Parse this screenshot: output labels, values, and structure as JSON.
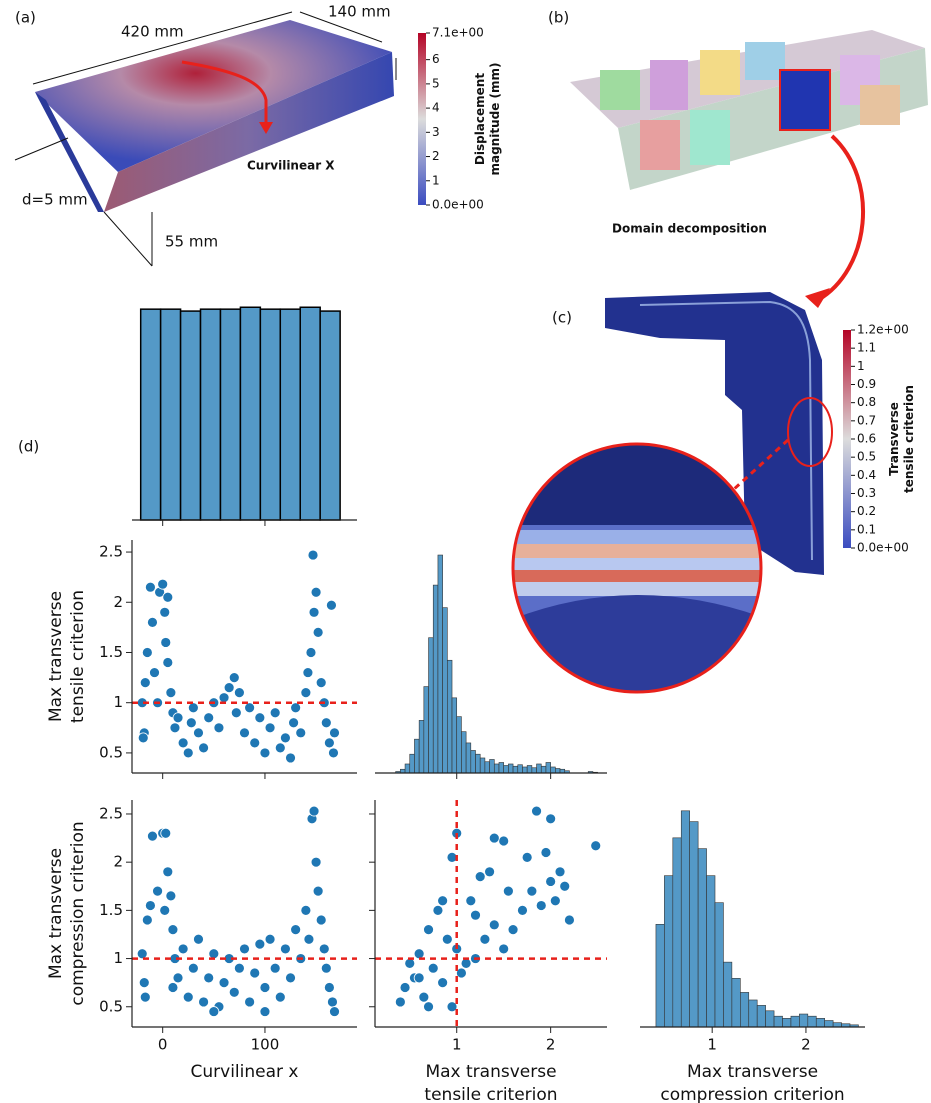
{
  "annotations": {
    "panel_a": "(a)",
    "panel_b": "(b)",
    "panel_c": "(c)",
    "panel_d": "(d)",
    "length": "420 mm",
    "width": "140 mm",
    "thickness": "d=5 mm",
    "height": "55 mm",
    "curvilinear": "Curvilinear X",
    "decomposition": "Domain decomposition"
  },
  "colorbars": [
    {
      "label": [
        "Displacement",
        "magnitude (mm)"
      ],
      "clim": [
        0,
        7.1
      ],
      "colors": [
        "#3b4cc0",
        "#dcdcdc",
        "#b40426"
      ],
      "ticks": [
        {
          "value": 7.1,
          "label": "7.1e+00"
        },
        6,
        5,
        4,
        3,
        2,
        1,
        {
          "value": 0,
          "label": "0.0e+00"
        }
      ]
    },
    {
      "label": [
        "Transverse",
        "tensile criterion"
      ],
      "clim": [
        0,
        1.2
      ],
      "colors": [
        "#3b4cc0",
        "#dcdcdc",
        "#b40426"
      ],
      "ticks": [
        {
          "value": 1.2,
          "label": "1.2e+00"
        },
        1.1,
        1,
        0.9,
        0.8,
        0.7,
        0.6,
        0.5,
        0.4,
        0.3,
        0.2,
        0.1,
        {
          "value": 0,
          "label": "0.0e+00"
        }
      ]
    }
  ],
  "chart_data": [
    {
      "type": "histogram",
      "color": "#5499c7",
      "edge": "#000000",
      "bins": [
        -21.5,
        -2,
        17.5,
        37,
        56.5,
        76,
        95.5,
        115,
        134.5,
        154,
        173.5
      ],
      "values": [
        110,
        110,
        109,
        110,
        110,
        111,
        110,
        110,
        111,
        109
      ],
      "xlim": [
        -30,
        190
      ],
      "ylim": [
        0,
        120
      ],
      "xticks": [
        0,
        100
      ],
      "xtick_labels": false
    },
    {
      "type": "scatter",
      "color": "#1f77b4",
      "ylabel": [
        "Max transverse",
        "tensile criterion"
      ],
      "x": [
        -18,
        -15,
        -17,
        -12,
        -10,
        -8,
        -5,
        -3,
        0,
        2,
        3,
        5,
        5,
        8,
        -20,
        -19,
        10,
        12,
        15,
        20,
        25,
        28,
        30,
        35,
        40,
        45,
        50,
        55,
        60,
        65,
        70,
        72,
        75,
        80,
        85,
        90,
        95,
        100,
        105,
        110,
        115,
        120,
        125,
        128,
        130,
        135,
        140,
        142,
        145,
        147,
        148,
        150,
        152,
        155,
        158,
        160,
        163,
        165,
        167,
        168
      ],
      "values": [
        0.7,
        1.5,
        1.2,
        2.15,
        1.8,
        1.3,
        1.0,
        2.1,
        2.18,
        1.9,
        1.6,
        1.4,
        2.05,
        1.1,
        1.0,
        0.65,
        0.9,
        0.75,
        0.85,
        0.6,
        0.5,
        0.8,
        0.95,
        0.7,
        0.55,
        0.85,
        1.0,
        0.75,
        1.05,
        1.15,
        1.25,
        0.9,
        1.1,
        0.7,
        0.95,
        0.6,
        0.85,
        0.5,
        0.75,
        0.9,
        0.55,
        0.65,
        0.45,
        0.8,
        0.95,
        0.7,
        1.1,
        1.3,
        1.5,
        2.47,
        1.9,
        2.1,
        1.7,
        1.2,
        1.0,
        0.8,
        0.6,
        1.97,
        0.5,
        0.7
      ],
      "xlim": [
        -30,
        190
      ],
      "ylim": [
        0.3,
        2.62
      ],
      "xticks": [
        0,
        100
      ],
      "xtick_labels": false,
      "yticks": [
        0.5,
        1.0,
        1.5,
        2.0,
        2.5
      ],
      "hlines": [
        1
      ],
      "ref_color": "#e8211b"
    },
    {
      "type": "histogram",
      "color": "#5499c7",
      "edge": "#333333",
      "bins": [
        0.35,
        0.4,
        0.45,
        0.5,
        0.55,
        0.6,
        0.65,
        0.7,
        0.75,
        0.8,
        0.85,
        0.9,
        0.95,
        1.0,
        1.05,
        1.1,
        1.15,
        1.2,
        1.25,
        1.3,
        1.35,
        1.4,
        1.45,
        1.5,
        1.55,
        1.6,
        1.65,
        1.7,
        1.75,
        1.8,
        1.85,
        1.9,
        1.95,
        2.0,
        2.05,
        2.1,
        2.15,
        2.2,
        2.25,
        2.3,
        2.35,
        2.4,
        2.45,
        2.5
      ],
      "values": [
        2,
        5,
        12,
        25,
        45,
        70,
        115,
        180,
        250,
        290,
        220,
        150,
        100,
        75,
        55,
        40,
        30,
        25,
        20,
        15,
        18,
        12,
        14,
        10,
        12,
        9,
        11,
        8,
        10,
        7,
        12,
        9,
        14,
        8,
        6,
        5,
        3,
        0,
        0,
        0,
        0,
        2,
        1
      ],
      "xlim": [
        0.13,
        2.6
      ],
      "ylim": [
        0,
        310
      ],
      "xticks": [
        1,
        2
      ],
      "xtick_labels": false
    },
    {
      "type": "scatter",
      "color": "#1f77b4",
      "ylabel": [
        "Max transverse",
        "compression criterion"
      ],
      "xlabel": [
        "Curvilinear x"
      ],
      "x": [
        -18,
        -15,
        -17,
        -12,
        -10,
        -5,
        0,
        3,
        5,
        2,
        8,
        10,
        12,
        15,
        20,
        25,
        30,
        35,
        40,
        45,
        50,
        55,
        60,
        65,
        70,
        75,
        80,
        85,
        90,
        95,
        100,
        105,
        110,
        115,
        120,
        125,
        130,
        135,
        140,
        143,
        146,
        148,
        150,
        152,
        155,
        158,
        160,
        163,
        166,
        168,
        -20,
        10,
        50,
        100
      ],
      "values": [
        0.75,
        1.4,
        0.6,
        1.55,
        2.27,
        1.7,
        2.3,
        2.3,
        1.9,
        1.5,
        1.65,
        1.3,
        1.0,
        0.8,
        1.1,
        0.6,
        0.9,
        1.2,
        0.55,
        0.8,
        1.05,
        0.5,
        0.75,
        1.0,
        0.65,
        0.9,
        1.1,
        0.55,
        0.85,
        1.15,
        0.7,
        1.2,
        0.9,
        0.6,
        1.1,
        0.8,
        1.3,
        1.0,
        1.5,
        1.2,
        2.45,
        2.53,
        2.0,
        1.7,
        1.4,
        1.1,
        0.9,
        0.7,
        0.55,
        0.45,
        1.05,
        0.7,
        0.45,
        0.45
      ],
      "xlim": [
        -30,
        190
      ],
      "ylim": [
        0.29,
        2.645
      ],
      "xticks": [
        0,
        100
      ],
      "yticks": [
        0.5,
        1.0,
        1.5,
        2.0,
        2.5
      ],
      "hlines": [
        1
      ],
      "ref_color": "#e8211b"
    },
    {
      "type": "scatter",
      "color": "#1f77b4",
      "xlabel": [
        "Max transverse",
        "tensile criterion"
      ],
      "x": [
        0.4,
        0.45,
        0.5,
        0.55,
        0.6,
        0.65,
        0.7,
        0.75,
        0.8,
        0.85,
        0.9,
        0.95,
        1.0,
        0.95,
        1.0,
        1.05,
        1.1,
        1.15,
        1.2,
        1.3,
        1.35,
        1.4,
        1.5,
        1.5,
        1.55,
        1.6,
        1.7,
        1.75,
        1.8,
        1.85,
        1.9,
        1.95,
        2.0,
        2.05,
        2.1,
        2.15,
        2.2,
        2.0,
        2.48,
        1.25,
        0.7,
        0.85,
        1.4,
        0.6,
        1.2
      ],
      "values": [
        0.55,
        0.7,
        0.95,
        0.8,
        1.05,
        0.6,
        1.3,
        0.9,
        1.5,
        0.75,
        1.2,
        0.5,
        1.1,
        2.05,
        2.3,
        0.85,
        0.95,
        1.6,
        1.0,
        1.2,
        1.9,
        1.35,
        1.1,
        2.22,
        1.7,
        1.3,
        1.5,
        2.05,
        1.7,
        2.53,
        1.55,
        2.1,
        1.8,
        1.6,
        1.9,
        1.75,
        1.4,
        2.45,
        2.17,
        1.85,
        0.5,
        1.6,
        2.25,
        0.8,
        1.45
      ],
      "xlim": [
        0.13,
        2.6
      ],
      "ylim": [
        0.29,
        2.645
      ],
      "xticks": [
        1,
        2
      ],
      "yticks": [
        0.5,
        1.0,
        1.5,
        2.0,
        2.5
      ],
      "ytick_labels": false,
      "hlines": [
        1
      ],
      "vlines": [
        1
      ],
      "ref_color": "#e8211b"
    },
    {
      "type": "histogram",
      "color": "#5499c7",
      "edge": "#333333",
      "xlabel": [
        "Max transverse",
        "compression criterion"
      ],
      "bins": [
        0.4,
        0.49,
        0.58,
        0.67,
        0.76,
        0.85,
        0.94,
        1.03,
        1.12,
        1.21,
        1.3,
        1.39,
        1.48,
        1.57,
        1.66,
        1.75,
        1.84,
        1.93,
        2.02,
        2.11,
        2.2,
        2.29,
        2.38,
        2.47,
        2.56
      ],
      "values": [
        95,
        140,
        175,
        200,
        190,
        165,
        140,
        115,
        60,
        45,
        32,
        25,
        20,
        15,
        10,
        8,
        10,
        12,
        10,
        8,
        6,
        4,
        3,
        2
      ],
      "xlim": [
        0.23,
        2.63
      ],
      "ylim": [
        0,
        210
      ],
      "xticks": [
        1,
        2
      ]
    }
  ]
}
